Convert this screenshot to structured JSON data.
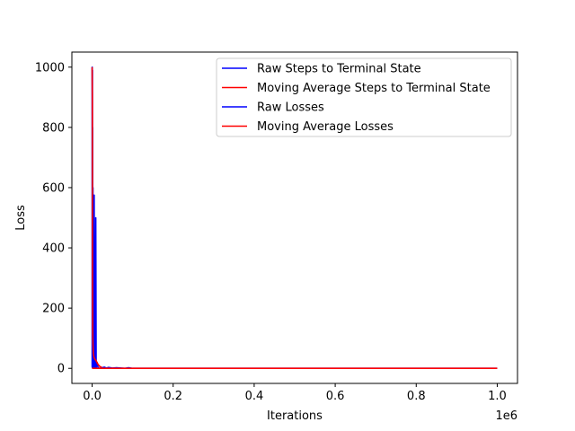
{
  "chart_data": {
    "type": "line",
    "xlabel": "Iterations",
    "ylabel": "Loss",
    "x_offset_label": "1e6",
    "xlim": [
      -50000,
      1050000
    ],
    "ylim": [
      -50,
      1050
    ],
    "x_ticks": [
      0,
      200000,
      400000,
      600000,
      800000,
      1000000
    ],
    "x_tick_labels": [
      "0.0",
      "0.2",
      "0.4",
      "0.6",
      "0.8",
      "1.0"
    ],
    "y_ticks": [
      0,
      200,
      400,
      600,
      800,
      1000
    ],
    "y_tick_labels": [
      "0",
      "200",
      "400",
      "600",
      "800",
      "1000"
    ],
    "legend_position": "top-right",
    "grid": false,
    "series": [
      {
        "name": "Raw Steps to Terminal State",
        "color": "#0000ff",
        "x": [
          0,
          100,
          300,
          500,
          800,
          1000,
          1200,
          1500,
          2000,
          2500,
          3000,
          4000,
          5000,
          6000,
          7000,
          8000,
          9000,
          10000,
          12000,
          15000,
          20000
        ],
        "y": [
          1000,
          5,
          1000,
          3,
          990,
          2,
          800,
          1,
          600,
          2,
          150,
          1,
          575,
          2,
          100,
          1,
          500,
          1,
          20,
          1,
          0
        ]
      },
      {
        "name": "Moving Average Steps to Terminal State",
        "color": "#ff0000",
        "x": [
          0,
          500,
          1000,
          1500,
          2000,
          3000,
          4000,
          5000,
          7000,
          10000,
          15000,
          20000,
          30000
        ],
        "y": [
          1000,
          900,
          300,
          120,
          80,
          50,
          40,
          35,
          30,
          25,
          12,
          5,
          0
        ]
      },
      {
        "name": "Raw Losses",
        "color": "#0000ff",
        "x": [
          0,
          20000,
          30000,
          35000,
          40000,
          50000,
          60000,
          80000,
          90000,
          100000,
          300000,
          600000,
          1000000
        ],
        "y": [
          0,
          0,
          4,
          1,
          3,
          1,
          2,
          0,
          2,
          0,
          0,
          0,
          0
        ]
      },
      {
        "name": "Moving Average Losses",
        "color": "#ff0000",
        "x": [
          0,
          100000,
          300000,
          600000,
          1000000
        ],
        "y": [
          0,
          0,
          0,
          0,
          0
        ]
      }
    ]
  }
}
